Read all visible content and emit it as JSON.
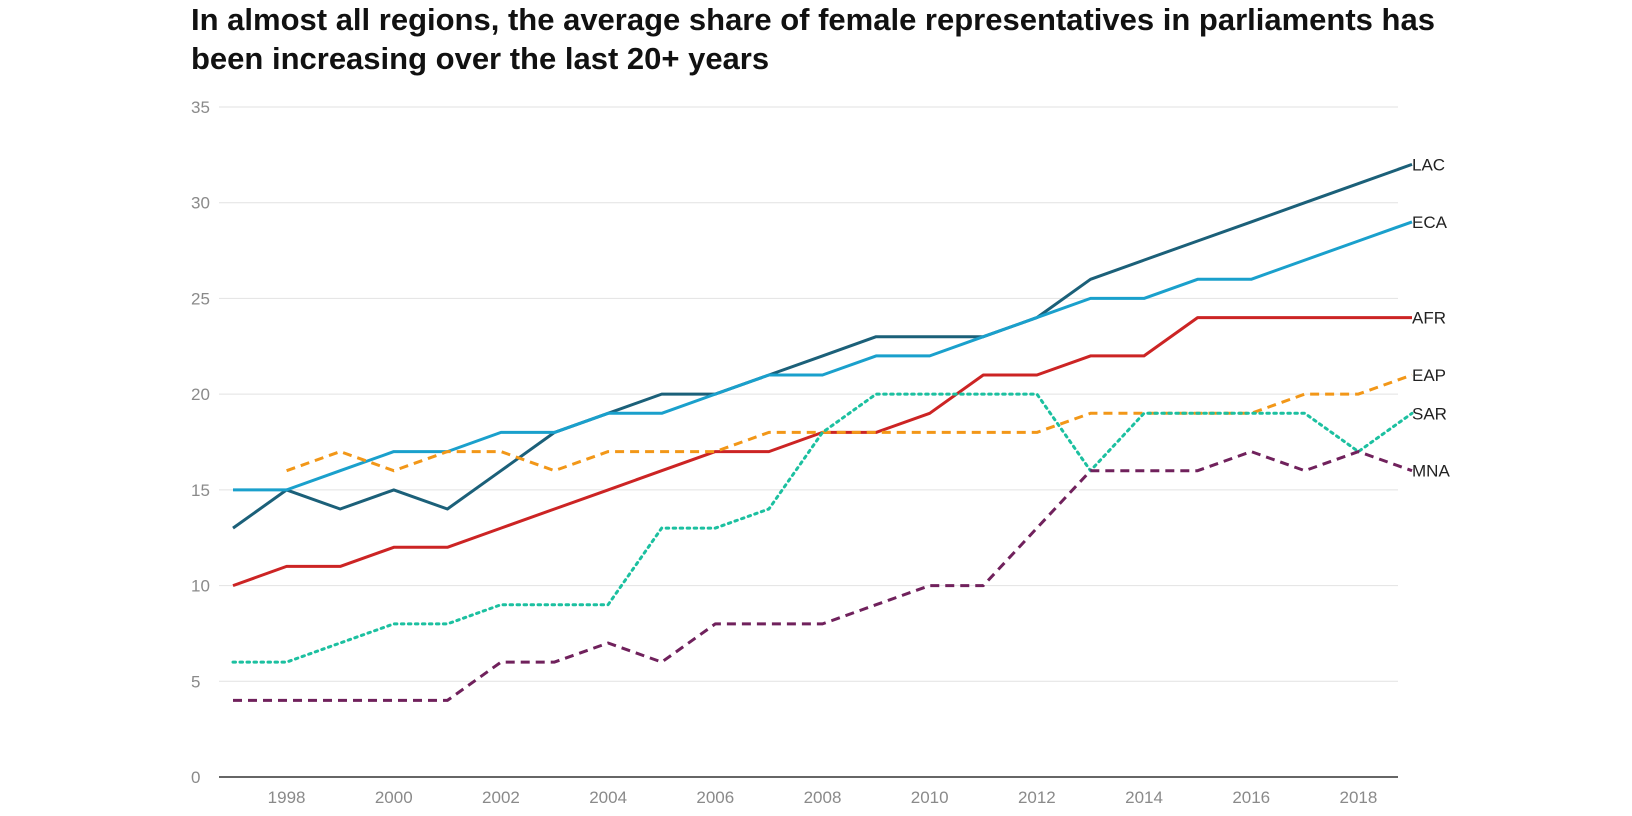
{
  "title": "In almost all regions, the average share of female representatives in parliaments has been increasing over the last 20+ years",
  "chart_data": {
    "type": "line",
    "title": "In almost all regions, the average share of female representatives in parliaments has been increasing over the last 20+ years",
    "xlabel": "",
    "ylabel": "",
    "xlim": [
      1997,
      2019
    ],
    "ylim": [
      0,
      35
    ],
    "grid": true,
    "x_ticks": [
      1998,
      2000,
      2002,
      2004,
      2006,
      2008,
      2010,
      2012,
      2014,
      2016,
      2018
    ],
    "y_ticks": [
      0,
      5,
      10,
      15,
      20,
      25,
      30,
      35
    ],
    "years": [
      1997,
      1998,
      1999,
      2000,
      2001,
      2002,
      2003,
      2004,
      2005,
      2006,
      2007,
      2008,
      2009,
      2010,
      2011,
      2012,
      2013,
      2014,
      2015,
      2016,
      2017,
      2018,
      2019
    ],
    "series": [
      {
        "name": "LAC",
        "color": "#1b6079",
        "style": "solid",
        "values": [
          13,
          15,
          14,
          15,
          14,
          16,
          18,
          19,
          20,
          20,
          21,
          22,
          23,
          23,
          23,
          24,
          26,
          27,
          28,
          29,
          30,
          31,
          32
        ]
      },
      {
        "name": "ECA",
        "color": "#1aa0cc",
        "style": "solid",
        "values": [
          15,
          15,
          16,
          17,
          17,
          18,
          18,
          19,
          19,
          20,
          21,
          21,
          22,
          22,
          23,
          24,
          25,
          25,
          26,
          26,
          27,
          28,
          29
        ]
      },
      {
        "name": "AFR",
        "color": "#cc2424",
        "style": "solid",
        "values": [
          10,
          11,
          11,
          12,
          12,
          13,
          14,
          15,
          16,
          17,
          17,
          18,
          18,
          19,
          21,
          21,
          22,
          22,
          24,
          24,
          24,
          24,
          24
        ]
      },
      {
        "name": "EAP",
        "color": "#f29718",
        "style": "dashed",
        "values": [
          null,
          16,
          17,
          16,
          17,
          17,
          16,
          17,
          17,
          17,
          18,
          18,
          18,
          18,
          18,
          18,
          19,
          19,
          19,
          19,
          20,
          20,
          21
        ]
      },
      {
        "name": "SAR",
        "color": "#1cc0a0",
        "style": "dotted",
        "values": [
          6,
          6,
          7,
          8,
          8,
          9,
          9,
          9,
          13,
          13,
          14,
          18,
          20,
          20,
          20,
          20,
          16,
          19,
          19,
          19,
          19,
          17,
          19
        ]
      },
      {
        "name": "MNA",
        "color": "#70215c",
        "style": "dashed",
        "values": [
          4,
          4,
          4,
          4,
          4,
          6,
          6,
          7,
          6,
          8,
          8,
          8,
          9,
          10,
          10,
          13,
          16,
          16,
          16,
          17,
          16,
          17,
          16
        ]
      }
    ]
  }
}
